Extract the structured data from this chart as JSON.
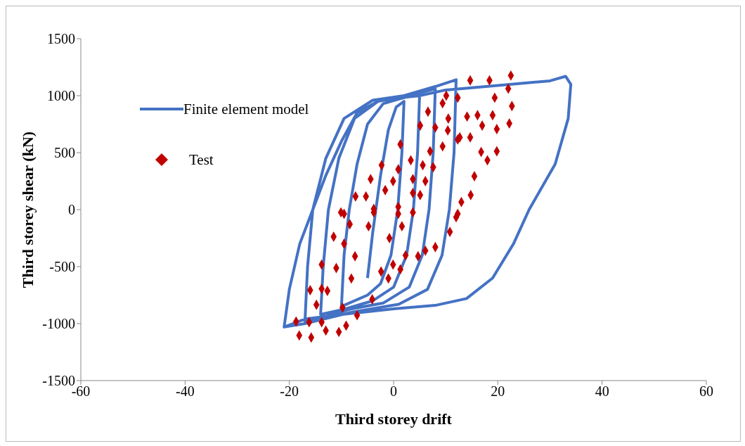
{
  "chart_data": {
    "type": "line",
    "xlabel": "Third storey drift",
    "ylabel": "Third storey shear (kN)",
    "xlim": [
      -60,
      60
    ],
    "xticks": [
      -60,
      -40,
      -20,
      0,
      20,
      40,
      60
    ],
    "ylim": [
      -1500,
      1500
    ],
    "yticks": [
      -1500,
      -1000,
      -500,
      0,
      500,
      1000,
      1500
    ],
    "grid": false,
    "legend": "top left",
    "series": [
      {
        "name": "Finite element model",
        "type": "line",
        "color": "#4472c4",
        "marker": "none",
        "line_style": "solid",
        "x": [
          -5,
          -4,
          -2.5,
          -1,
          0.5,
          2,
          1.6,
          0.8,
          -0.5,
          -2.5,
          -5,
          -10,
          -9.5,
          -8.5,
          -7,
          -5,
          -2,
          1,
          5,
          4.6,
          3.8,
          2.5,
          0,
          -4,
          -10,
          -14,
          -13.5,
          -12.5,
          -10.5,
          -7.5,
          -3,
          2,
          8,
          7.6,
          6.8,
          5.5,
          3,
          -2,
          -8,
          -14,
          -17,
          -16.5,
          -15.5,
          -13,
          -9.5,
          -4,
          2,
          8,
          12,
          11.6,
          10.7,
          9.3,
          6.5,
          1,
          -8,
          -17,
          -21,
          -20,
          -18,
          -15.5,
          -13,
          -10,
          -7,
          -3,
          0,
          5,
          10,
          20,
          30,
          33,
          34,
          33.5,
          31,
          26,
          23,
          19,
          14,
          8,
          0,
          -10,
          -17,
          -21
        ],
        "values": [
          -600,
          -200,
          300,
          700,
          900,
          950,
          500,
          0,
          -400,
          -650,
          -750,
          -850,
          -400,
          0,
          400,
          750,
          930,
          970,
          1020,
          500,
          0,
          -400,
          -680,
          -800,
          -880,
          -920,
          -500,
          0,
          450,
          800,
          950,
          990,
          1060,
          500,
          0,
          -400,
          -680,
          -820,
          -870,
          -950,
          -980,
          -500,
          0,
          450,
          800,
          960,
          1000,
          1080,
          1140,
          500,
          0,
          -400,
          -700,
          -830,
          -900,
          -1000,
          -1030,
          -700,
          -300,
          0,
          300,
          600,
          850,
          950,
          975,
          1000,
          1050,
          1090,
          1130,
          1170,
          1100,
          800,
          400,
          0,
          -300,
          -600,
          -780,
          -840,
          -870,
          -920,
          -960,
          -1030
        ]
      },
      {
        "name": "Test",
        "type": "scatter",
        "color": "#c00000",
        "marker": "diamond",
        "x": [
          14.7,
          18.4,
          22.5,
          22.0,
          10.1,
          12.3,
          9.4,
          19.4,
          22.7,
          6.6,
          10.5,
          14.1,
          16.1,
          19.0,
          22.2,
          5.1,
          8.0,
          10.4,
          12.7,
          14.7,
          17.0,
          19.8,
          1.3,
          12.3,
          7.0,
          9.4,
          16.8,
          19.8,
          -2.3,
          3.3,
          5.6,
          18.0,
          0.9,
          7.6,
          -4.4,
          -0.1,
          3.7,
          6.1,
          15.5,
          -1.6,
          3.7,
          5.1,
          14.8,
          -7.3,
          -5.3,
          13.0,
          -3.8,
          0.9,
          -10.1,
          12.3,
          -9.5,
          -3.8,
          0.9,
          3.7,
          12.0,
          -8.4,
          -4.8,
          1.6,
          10.8,
          -11.5,
          -9.5,
          -0.8,
          -7.4,
          2.3,
          4.7,
          8.0,
          6.1,
          -13.8,
          -11.0,
          -0.1,
          1.3,
          -2.4,
          -1.0,
          -8.1,
          -16.0,
          -13.8,
          -12.7,
          -4.1,
          -14.8,
          -9.8,
          -7.0,
          -18.7,
          -16.2,
          -13.8,
          -9.1,
          -18.1,
          -15.8,
          -13.0,
          -10.5
        ],
        "values": [
          1134,
          1134,
          1177,
          1061,
          1000,
          982,
          933,
          982,
          909,
          860,
          799,
          817,
          829,
          829,
          756,
          738,
          720,
          695,
          634,
          634,
          738,
          707,
          573,
          616,
          512,
          555,
          506,
          512,
          390,
          433,
          390,
          433,
          354,
          372,
          268,
          250,
          268,
          250,
          293,
          171,
          146,
          128,
          128,
          116,
          116,
          67,
          6,
          24,
          -24,
          -37,
          -37,
          -24,
          -37,
          -24,
          -67,
          -128,
          -146,
          -146,
          -195,
          -238,
          -299,
          -250,
          -409,
          -402,
          -409,
          -329,
          -360,
          -482,
          -512,
          -482,
          -524,
          -543,
          -604,
          -604,
          -707,
          -695,
          -713,
          -787,
          -835,
          -860,
          -927,
          -982,
          -988,
          -988,
          -1018,
          -1104,
          -1122,
          -1061,
          -1073
        ]
      }
    ]
  }
}
